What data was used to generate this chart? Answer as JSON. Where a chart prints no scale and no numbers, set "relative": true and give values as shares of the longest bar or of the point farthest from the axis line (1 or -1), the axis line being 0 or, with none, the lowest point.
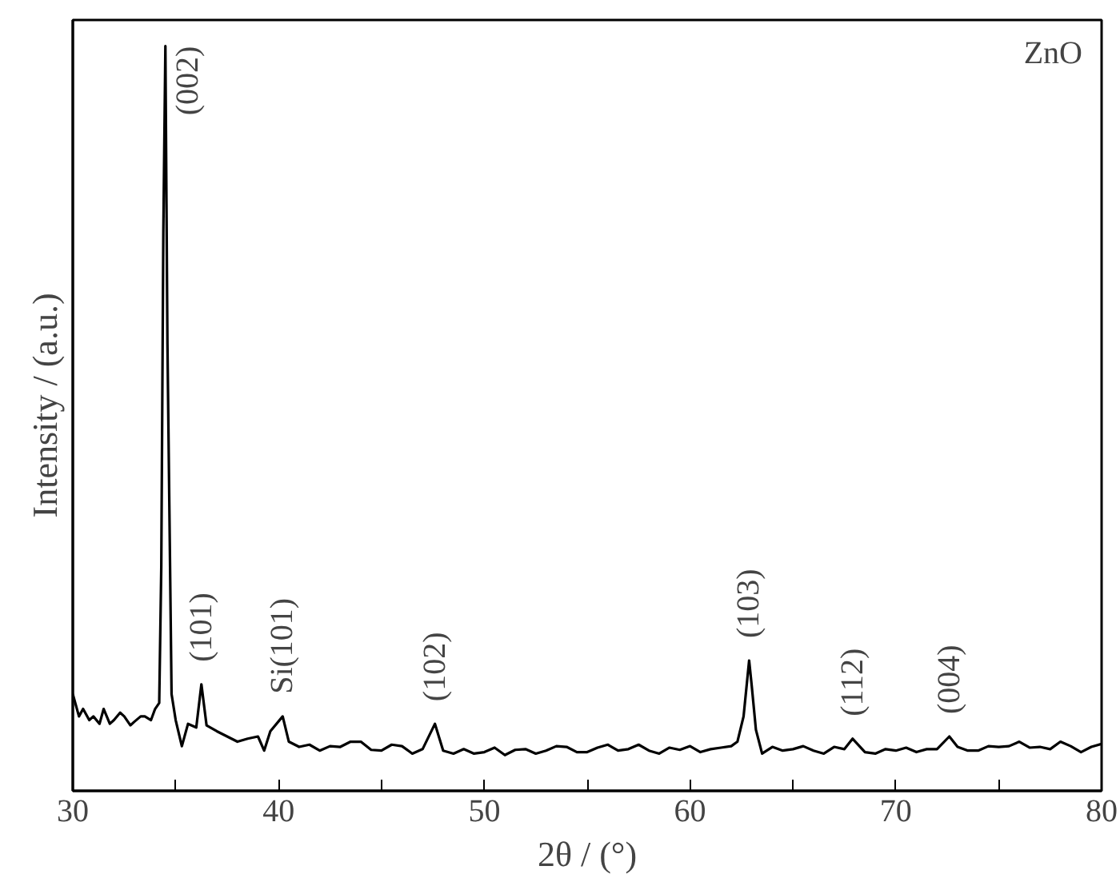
{
  "chart_data": {
    "type": "line",
    "relative": true,
    "xlabel": "2θ / (°)",
    "ylabel": "Intensity / (a.u.)",
    "xlim": [
      30,
      80
    ],
    "xticks": [
      30,
      {
        "value": 35,
        "label": null
      },
      40,
      {
        "value": 45,
        "label": null
      },
      50,
      {
        "value": 55,
        "label": null
      },
      60,
      {
        "value": 65,
        "label": null
      },
      70,
      {
        "value": 75,
        "label": null
      },
      80
    ],
    "grid": false,
    "series": [
      {
        "color": "#000000",
        "x": [
          30,
          30.3,
          30.5,
          30.8,
          31,
          31.3,
          31.5,
          31.8,
          32,
          32.3,
          32.5,
          32.8,
          33,
          33.3,
          33.5,
          33.8,
          34,
          34.2,
          34.3,
          34.4,
          34.5,
          34.6,
          34.8,
          35,
          35.3,
          35.6,
          36,
          36.25,
          36.5,
          37,
          37.5,
          38,
          38.5,
          39,
          39.3,
          39.6,
          40.2,
          40.5,
          41,
          41.5,
          42,
          42.5,
          43,
          43.5,
          44,
          44.5,
          45,
          45.5,
          46,
          46.5,
          47,
          47.6,
          48,
          48.5,
          49,
          49.5,
          50,
          50.5,
          51,
          51.5,
          52,
          52.5,
          53,
          53.5,
          54,
          54.5,
          55,
          55.5,
          56,
          56.5,
          57,
          57.5,
          58,
          58.5,
          59,
          59.5,
          60,
          60.5,
          61,
          61.5,
          62,
          62.3,
          62.6,
          62.87,
          63.0,
          63.2,
          63.5,
          64,
          64.5,
          65,
          65.5,
          66,
          66.5,
          67,
          67.5,
          67.9,
          68.5,
          69,
          69.5,
          70,
          70.5,
          71,
          71.5,
          72,
          72.6,
          73,
          73.5,
          74,
          74.5,
          75,
          75.5,
          76,
          76.5,
          77,
          77.5,
          78,
          78.5,
          79,
          79.5,
          80
        ],
        "values": [
          0.13,
          0.1,
          0.11,
          0.095,
          0.1,
          0.09,
          0.11,
          0.09,
          0.095,
          0.105,
          0.1,
          0.088,
          0.093,
          0.1,
          0.1,
          0.095,
          0.11,
          0.118,
          0.3,
          0.75,
          1.0,
          0.6,
          0.13,
          0.095,
          0.06,
          0.09,
          0.085,
          0.143,
          0.088,
          0.08,
          0.073,
          0.066,
          0.07,
          0.073,
          0.054,
          0.08,
          0.1,
          0.066,
          0.059,
          0.062,
          0.054,
          0.06,
          0.059,
          0.066,
          0.066,
          0.055,
          0.054,
          0.062,
          0.06,
          0.05,
          0.056,
          0.09,
          0.054,
          0.05,
          0.056,
          0.05,
          0.052,
          0.058,
          0.048,
          0.055,
          0.056,
          0.05,
          0.054,
          0.06,
          0.059,
          0.052,
          0.052,
          0.058,
          0.062,
          0.054,
          0.056,
          0.062,
          0.054,
          0.05,
          0.058,
          0.055,
          0.06,
          0.052,
          0.056,
          0.058,
          0.06,
          0.066,
          0.1,
          0.175,
          0.14,
          0.082,
          0.05,
          0.059,
          0.054,
          0.056,
          0.06,
          0.054,
          0.05,
          0.059,
          0.056,
          0.07,
          0.052,
          0.05,
          0.056,
          0.054,
          0.058,
          0.052,
          0.056,
          0.056,
          0.073,
          0.059,
          0.054,
          0.054,
          0.06,
          0.059,
          0.06,
          0.066,
          0.058,
          0.059,
          0.056,
          0.066,
          0.06,
          0.052,
          0.059,
          0.063
        ]
      }
    ],
    "annotations": [
      "ZnO",
      {
        "text": "(002)",
        "x": 34.5,
        "y": 1.0
      },
      {
        "text": "(101)",
        "x": 36.25,
        "y": 0.143
      },
      {
        "text": "Si(101)",
        "x": 40.2,
        "y": 0.1
      },
      {
        "text": "(102)",
        "x": 47.6,
        "y": 0.09
      },
      {
        "text": "(103)",
        "x": 62.87,
        "y": 0.175
      },
      {
        "text": "(112)",
        "x": 67.9,
        "y": 0.07
      },
      {
        "text": "(004)",
        "x": 72.6,
        "y": 0.073
      }
    ]
  }
}
